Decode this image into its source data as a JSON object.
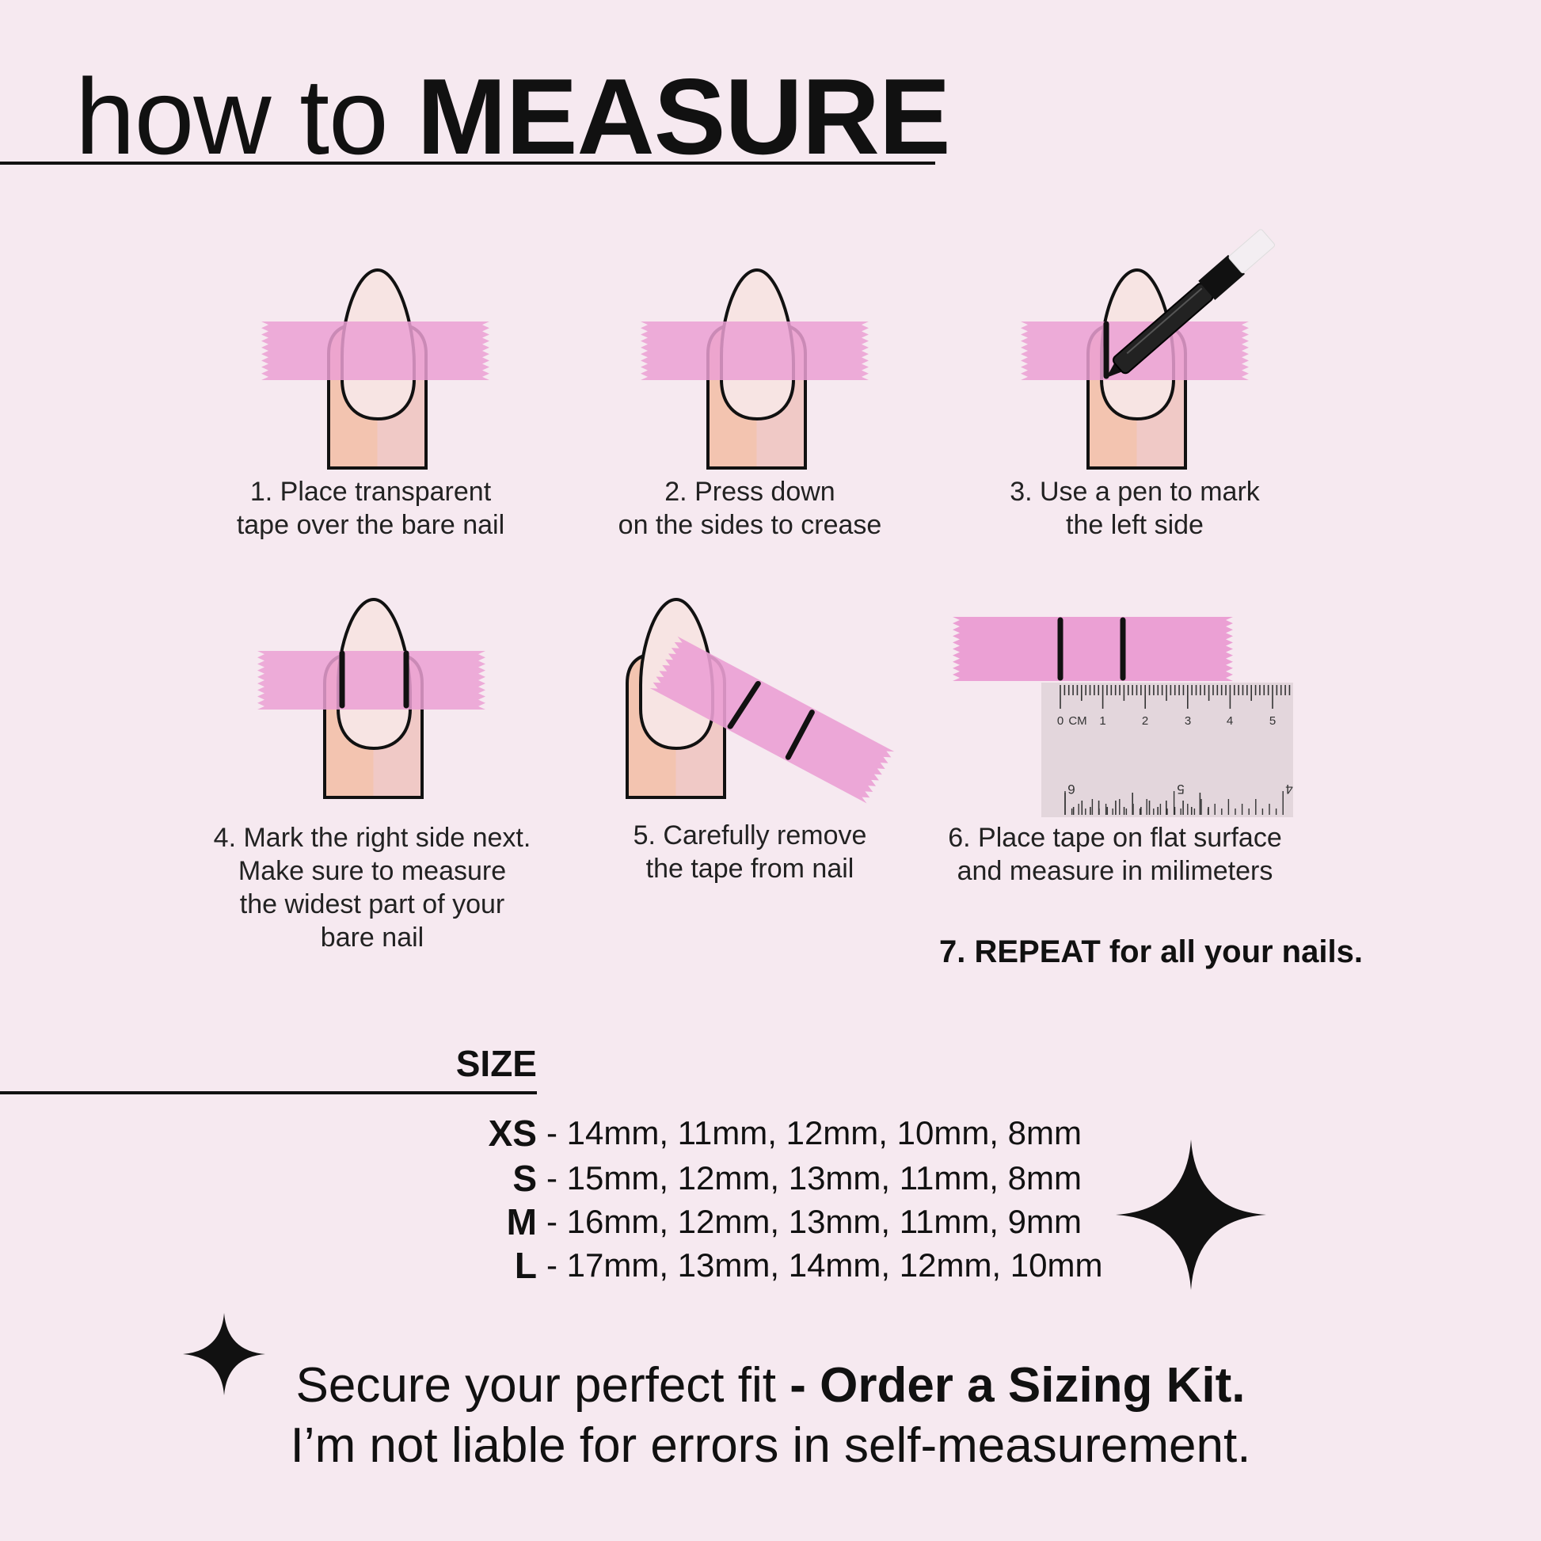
{
  "header": {
    "title_light": "how to",
    "title_bold": "MEASURE"
  },
  "steps": [
    {
      "lines": [
        "1. Place transparent",
        "tape over the bare nail"
      ]
    },
    {
      "lines": [
        "2. Press down",
        "on the sides to crease"
      ]
    },
    {
      "lines": [
        "3. Use a pen to mark",
        "the left side"
      ]
    },
    {
      "lines": [
        "4. Mark the right side next.",
        "Make sure to measure",
        "the widest part of your",
        "bare nail"
      ]
    },
    {
      "lines": [
        "5. Carefully remove",
        "the tape from nail"
      ]
    },
    {
      "lines": [
        "6. Place tape on flat surface",
        "and measure in milimeters"
      ]
    }
  ],
  "repeat": "7. REPEAT for all your nails.",
  "ruler": {
    "top_labels": [
      "0",
      "CM",
      "1",
      "2",
      "3",
      "4",
      "5"
    ],
    "bottom_labels": [
      "6",
      "5",
      "4"
    ]
  },
  "size": {
    "title": "SIZE",
    "rows": [
      {
        "label": "XS",
        "values": "- 14mm, 11mm, 12mm, 10mm, 8mm"
      },
      {
        "label": "S",
        "values": "- 15mm, 12mm, 13mm, 11mm, 8mm"
      },
      {
        "label": "M",
        "values": "- 16mm, 12mm, 13mm, 11mm, 9mm"
      },
      {
        "label": "L",
        "values": "- 17mm, 13mm, 14mm, 12mm, 10mm"
      }
    ]
  },
  "footer": {
    "line1_regular": "Secure your perfect fit ",
    "line1_bold": "- Order a Sizing Kit.",
    "line2": "I’m not liable for errors in self-measurement."
  },
  "colors": {
    "background": "#f6e9f0",
    "tape": "#eba0d4",
    "finger_left": "#f3c4b0",
    "finger_right": "#f0c9c6",
    "nail": "#f7e4e3",
    "ruler": "#e3d6dc",
    "ink": "#111111"
  }
}
